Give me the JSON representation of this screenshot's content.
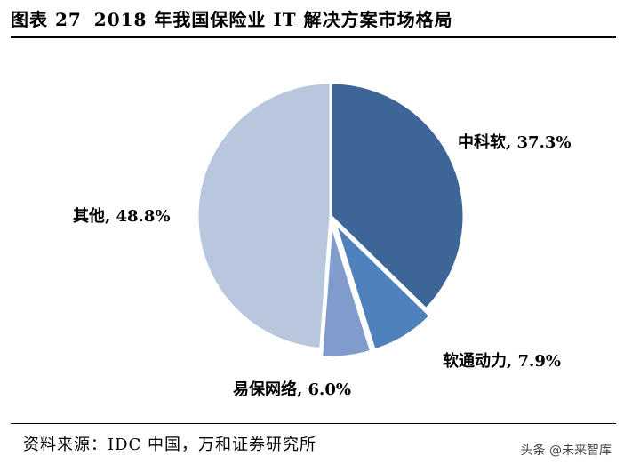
{
  "header": {
    "figure_number": "图表 27",
    "title": "2018 年我国保险业 IT 解决方案市场格局"
  },
  "chart_data": {
    "type": "pie",
    "title": "2018 年我国保险业 IT 解决方案市场格局",
    "slices": [
      {
        "label": "中科软",
        "value": 37.3,
        "value_text": "37.3%",
        "display": "中科软, 37.3%",
        "color": "#3d6597"
      },
      {
        "label": "软通动力",
        "value": 7.9,
        "value_text": "7.9%",
        "display": "软通动力, 7.9%",
        "color": "#4f81bd"
      },
      {
        "label": "易保网络",
        "value": 6.0,
        "value_text": "6.0%",
        "display": "易保网络, 6.0%",
        "color": "#7f9ccc"
      },
      {
        "label": "其他",
        "value": 48.8,
        "value_text": "48.8%",
        "display": "其他, 48.8%",
        "color": "#b8c6de"
      }
    ],
    "start_angle_deg": 0,
    "direction": "clockwise",
    "slice_border_color": "#ffffff"
  },
  "footer": {
    "source": "资料来源：IDC 中国，万和证券研究所",
    "watermark": "头条 @未来智库"
  }
}
